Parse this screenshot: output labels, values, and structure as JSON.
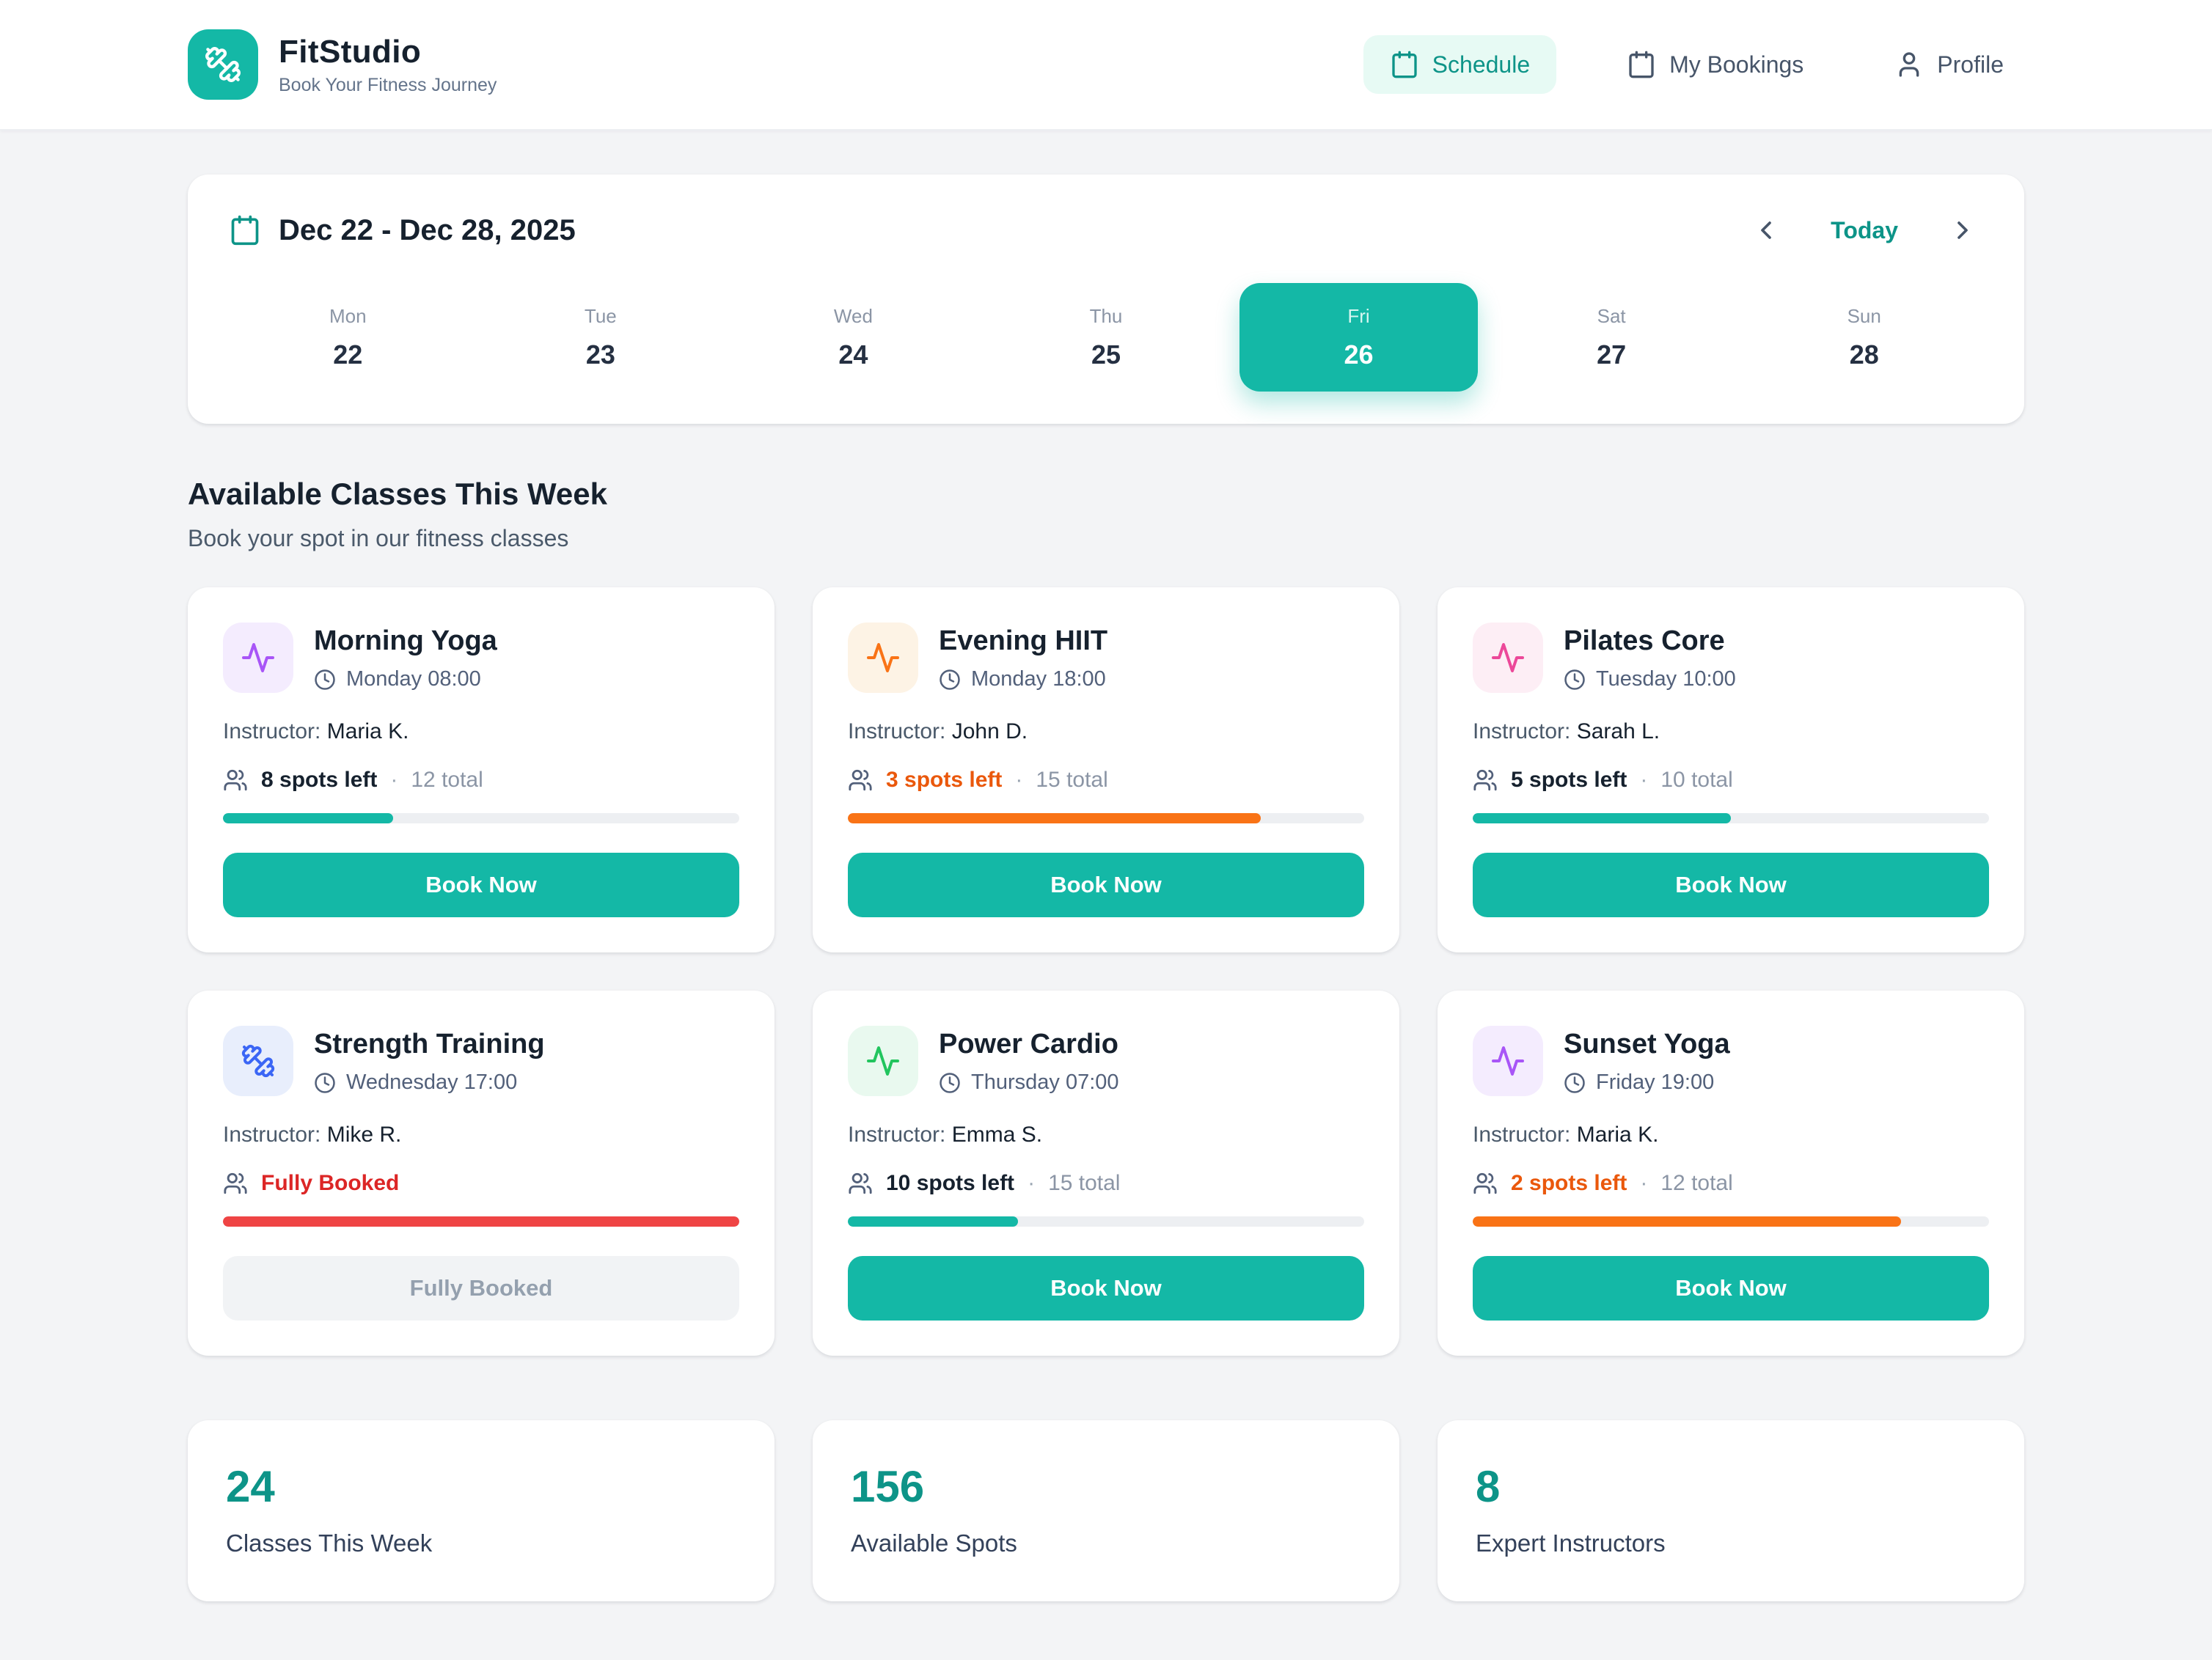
{
  "brand": {
    "name": "FitStudio",
    "tagline": "Book Your Fitness Journey"
  },
  "nav": {
    "schedule": "Schedule",
    "my_bookings": "My Bookings",
    "profile": "Profile"
  },
  "week_bar": {
    "range": "Dec 22 - Dec 28, 2025",
    "today_label": "Today",
    "selected_index": 4,
    "days": [
      {
        "name": "Mon",
        "date": "22"
      },
      {
        "name": "Tue",
        "date": "23"
      },
      {
        "name": "Wed",
        "date": "24"
      },
      {
        "name": "Thu",
        "date": "25"
      },
      {
        "name": "Fri",
        "date": "26"
      },
      {
        "name": "Sat",
        "date": "27"
      },
      {
        "name": "Sun",
        "date": "28"
      }
    ]
  },
  "section": {
    "title": "Available Classes This Week",
    "subtitle": "Book your spot in our fitness classes"
  },
  "instructor_label": "Instructor:",
  "classes": [
    {
      "name": "Morning Yoga",
      "time": "Monday 08:00",
      "instructor": "Maria K.",
      "spots_text": "8 spots left",
      "sep": "·",
      "total_text": "12 total",
      "icon": "activity",
      "icon_color": "#a855f7",
      "icon_bg": "#f4ecfe",
      "spots_color": "#16212e",
      "bar_color": "#14b8a6",
      "fill_percent": 33,
      "button": "Book Now",
      "button_enabled": true
    },
    {
      "name": "Evening HIIT",
      "time": "Monday 18:00",
      "instructor": "John D.",
      "spots_text": "3 spots left",
      "sep": "·",
      "total_text": "15 total",
      "icon": "activity",
      "icon_color": "#f97316",
      "icon_bg": "#fdf3e5",
      "spots_color": "#ea580c",
      "bar_color": "#f97316",
      "fill_percent": 80,
      "button": "Book Now",
      "button_enabled": true
    },
    {
      "name": "Pilates Core",
      "time": "Tuesday 10:00",
      "instructor": "Sarah L.",
      "spots_text": "5 spots left",
      "sep": "·",
      "total_text": "10 total",
      "icon": "activity",
      "icon_color": "#ec4899",
      "icon_bg": "#fdeef5",
      "spots_color": "#16212e",
      "bar_color": "#14b8a6",
      "fill_percent": 50,
      "button": "Book Now",
      "button_enabled": true
    },
    {
      "name": "Strength Training",
      "time": "Wednesday 17:00",
      "instructor": "Mike R.",
      "spots_text": "Fully Booked",
      "sep": "",
      "total_text": "",
      "icon": "dumbbell",
      "icon_color": "#3b66f5",
      "icon_bg": "#e8eefc",
      "spots_color": "#dc2626",
      "bar_color": "#ef4444",
      "fill_percent": 100,
      "button": "Fully Booked",
      "button_enabled": false
    },
    {
      "name": "Power Cardio",
      "time": "Thursday 07:00",
      "instructor": "Emma S.",
      "spots_text": "10 spots left",
      "sep": "·",
      "total_text": "15 total",
      "icon": "activity",
      "icon_color": "#22c55e",
      "icon_bg": "#e9f9ef",
      "spots_color": "#16212e",
      "bar_color": "#14b8a6",
      "fill_percent": 33,
      "button": "Book Now",
      "button_enabled": true
    },
    {
      "name": "Sunset Yoga",
      "time": "Friday 19:00",
      "instructor": "Maria K.",
      "spots_text": "2 spots left",
      "sep": "·",
      "total_text": "12 total",
      "icon": "activity",
      "icon_color": "#a855f7",
      "icon_bg": "#f4ecfe",
      "spots_color": "#ea580c",
      "bar_color": "#f97316",
      "fill_percent": 83,
      "button": "Book Now",
      "button_enabled": true
    }
  ],
  "stats": [
    {
      "value": "24",
      "label": "Classes This Week"
    },
    {
      "value": "156",
      "label": "Available Spots"
    },
    {
      "value": "8",
      "label": "Expert Instructors"
    }
  ],
  "colors": {
    "accent": "#14b8a6",
    "accent_dark": "#0d9488",
    "accent_soft": "#e7faf4",
    "warning_text": "#ea580c",
    "warning_bar": "#f97316",
    "danger_text": "#dc2626",
    "danger_bar": "#ef4444",
    "page_bg": "#f3f4f6"
  }
}
